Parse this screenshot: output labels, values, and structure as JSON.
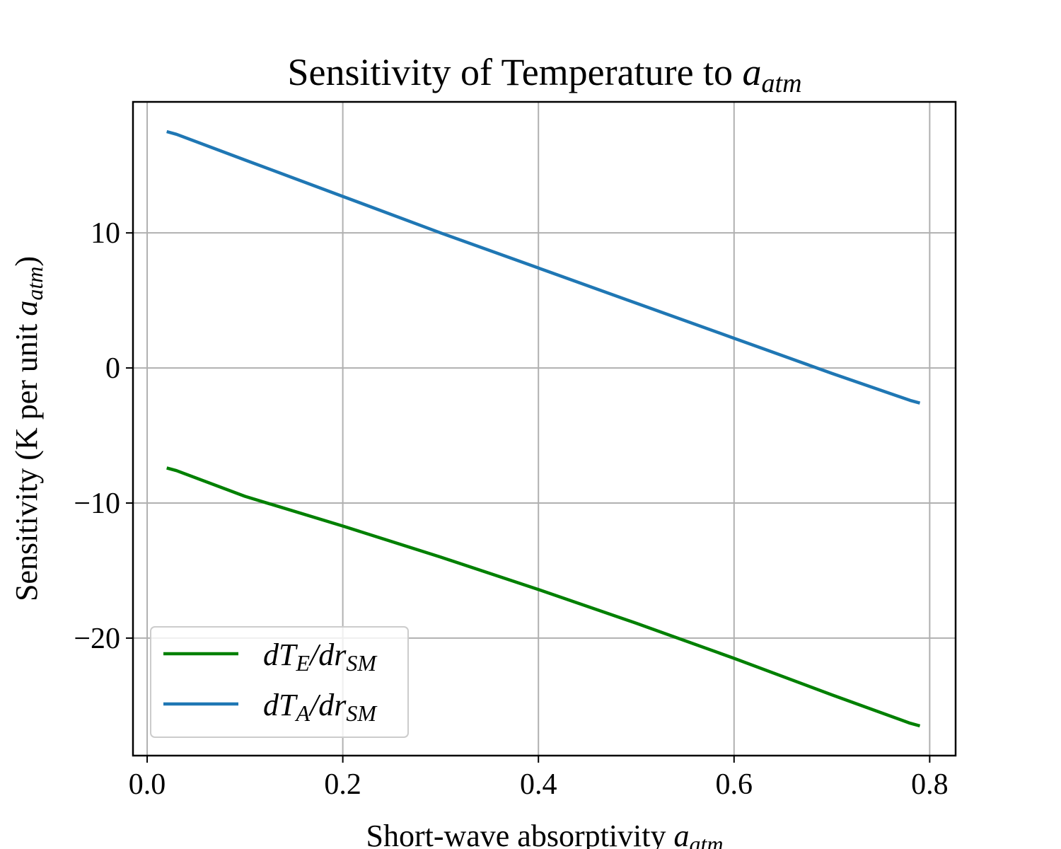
{
  "chart_data": {
    "type": "line",
    "title": {
      "main": "Sensitivity of Temperature to ",
      "var": "a",
      "sub": "atm"
    },
    "xlabel": {
      "main": "Short-wave absorptivity ",
      "var": "a",
      "sub": "atm"
    },
    "ylabel": {
      "main": "Sensitivity (K per unit ",
      "var": "a",
      "sub": "atm",
      "close": ")"
    },
    "xlim": [
      -0.0145,
      0.8265
    ],
    "ylim": [
      -28.7,
      19.7
    ],
    "xticks": [
      0.0,
      0.2,
      0.4,
      0.6,
      0.8
    ],
    "xtick_labels": [
      "0.0",
      "0.2",
      "0.4",
      "0.6",
      "0.8"
    ],
    "yticks": [
      -20,
      -10,
      0,
      10
    ],
    "ytick_labels": [
      "−20",
      "−10",
      "0",
      "10"
    ],
    "grid": true,
    "legend_position": "lower-left",
    "series": [
      {
        "key": "dTE",
        "name": "dT_E/dr_SM",
        "label_parts": {
          "d1": "dT",
          "sub1": "E",
          "slash": "/",
          "d2": "dr",
          "sub2": "SM"
        },
        "color": "#008000",
        "x": [
          0.02,
          0.03,
          0.1,
          0.2,
          0.3,
          0.4,
          0.5,
          0.6,
          0.7,
          0.78,
          0.79
        ],
        "y": [
          -7.4,
          -7.6,
          -9.5,
          -11.7,
          -14.0,
          -16.4,
          -18.9,
          -21.5,
          -24.2,
          -26.3,
          -26.5
        ]
      },
      {
        "key": "dTA",
        "name": "dT_A/dr_SM",
        "label_parts": {
          "d1": "dT",
          "sub1": "A",
          "slash": "/",
          "d2": "dr",
          "sub2": "SM"
        },
        "color": "#1f77b4",
        "x": [
          0.02,
          0.03,
          0.1,
          0.2,
          0.3,
          0.4,
          0.5,
          0.6,
          0.7,
          0.78,
          0.79
        ],
        "y": [
          17.5,
          17.3,
          15.4,
          12.7,
          10.0,
          7.4,
          4.8,
          2.2,
          -0.4,
          -2.4,
          -2.6
        ]
      }
    ]
  }
}
